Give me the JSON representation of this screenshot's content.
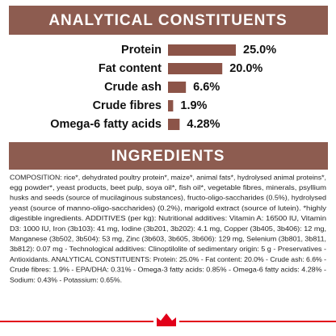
{
  "analytical": {
    "title": "ANALYTICAL CONSTITUENTS",
    "items": [
      {
        "label": "Protein",
        "value": 25.0,
        "value_label": "25.0%"
      },
      {
        "label": "Fat content",
        "value": 20.0,
        "value_label": "20.0%"
      },
      {
        "label": "Crude ash",
        "value": 6.6,
        "value_label": "6.6%"
      },
      {
        "label": "Crude fibres",
        "value": 1.9,
        "value_label": "1.9%"
      },
      {
        "label": "Omega-6 fatty acids",
        "value": 4.28,
        "value_label": "4.28%"
      }
    ]
  },
  "ingredients": {
    "title": "INGREDIENTS",
    "lines": [
      "COMPOSITION: rice*, dehydrated poultry protein*, maize*, animal fats*, hydrolysed animal proteins*,",
      "egg powder*, yeast products, beet pulp, soya oil*, fish oil*, vegetable fibres, minerals, psyllium",
      "husks and seeds (source of mucilaginous substances), fructo-oligo-saccharides (0.5%), hydrolysed",
      "yeast (source of manno-oligo-saccharides) (0.2%), marigold extract (source of lutein). *highly",
      "digestible ingredients. ADDITIVES (per kg): Nutritional additives: Vitamin A: 16500 IU, Vitamin",
      "D3: 1000 IU, Iron (3b103): 41 mg, Iodine (3b201, 3b202): 4.1 mg, Copper (3b405, 3b406): 12 mg,",
      "Manganese (3b502, 3b504): 53 mg, Zinc (3b603, 3b605, 3b606): 129 mg, Selenium (3b801, 3b811,",
      "3b812): 0.07 mg - Technological additives: Clinoptilolite of sedimentary origin: 5 g - Preservatives -",
      "Antioxidants. ANALYTICAL CONSTITUENTS: Protein: 25.0% - Fat content: 20.0% - Crude ash: 6.6% -",
      "Crude fibres: 1.9% - EPA/DHA: 0.31% - Omega-3 fatty acids: 0.85% - Omega-6 fatty acids: 4.28% -",
      "Sodium: 0.43% - Potassium: 0.65%."
    ]
  }
}
